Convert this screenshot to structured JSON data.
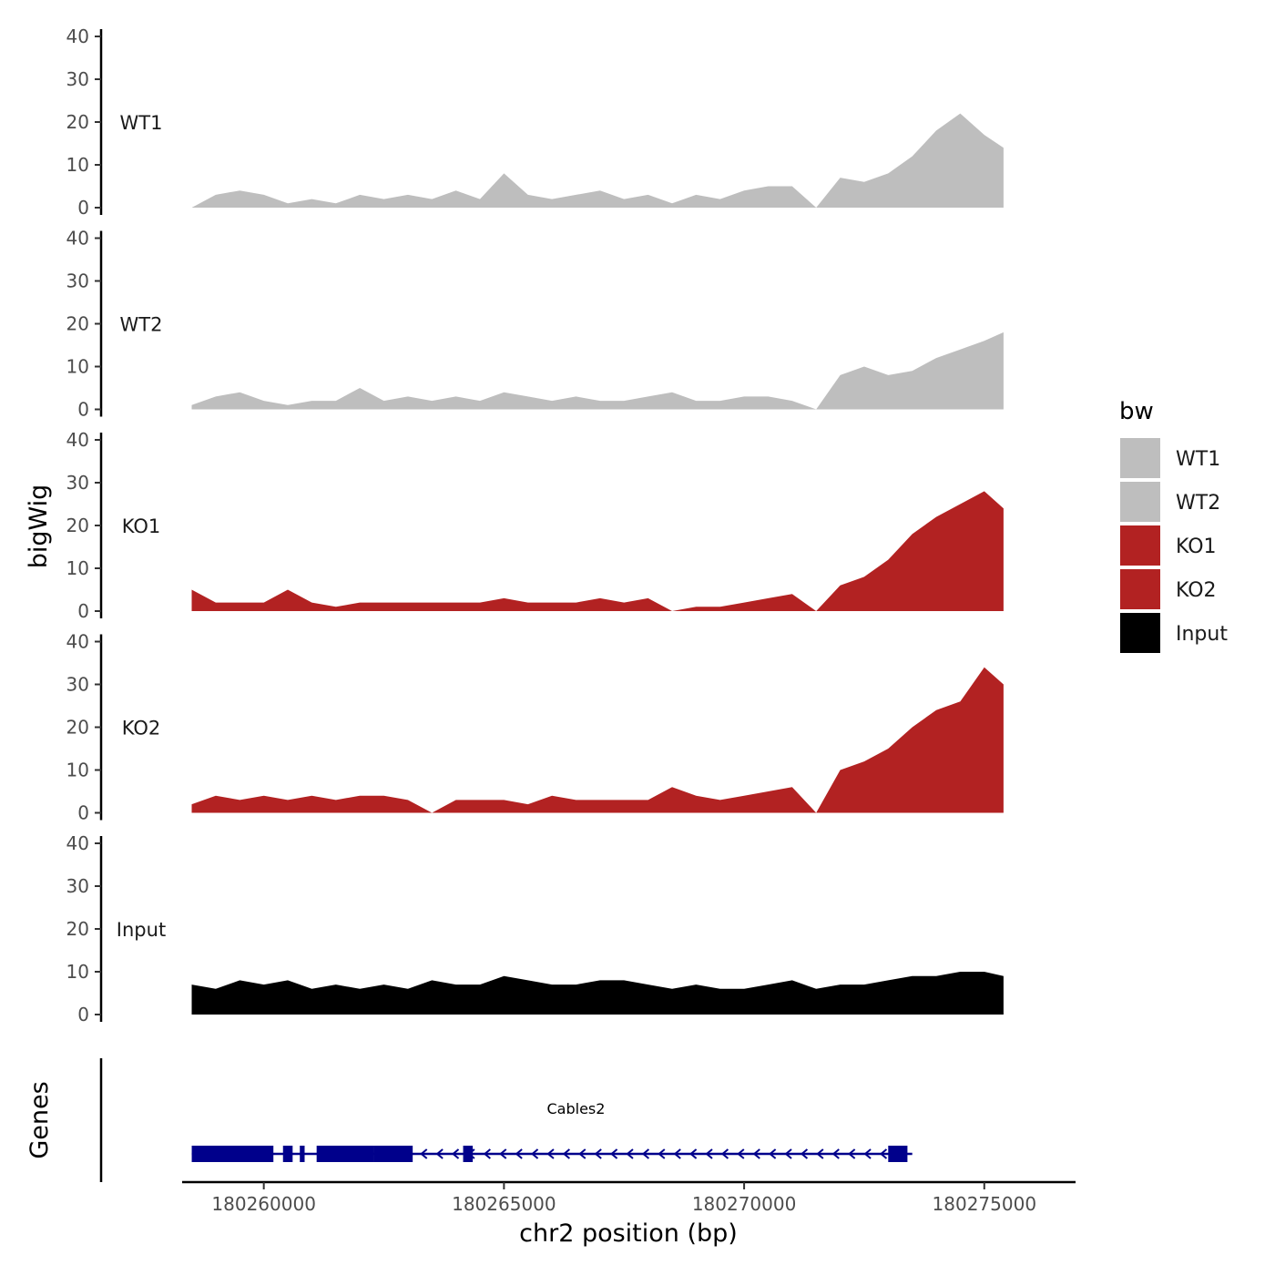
{
  "chart_data": {
    "type": "area",
    "ylabel": "bigWig",
    "xlabel": "chr2 position (bp)",
    "genes_label": "Genes",
    "ylim": [
      0,
      40
    ],
    "y_ticks": [
      "0",
      "10",
      "20",
      "30",
      "40"
    ],
    "xlim": [
      180258300,
      180276900
    ],
    "x_ticks": [
      {
        "value": 180260000,
        "label": "180260000"
      },
      {
        "value": 180265000,
        "label": "180265000"
      },
      {
        "value": 180270000,
        "label": "180270000"
      },
      {
        "value": 180275000,
        "label": "180275000"
      }
    ],
    "legend": {
      "title": "bw",
      "items": [
        {
          "label": "WT1",
          "color": "#bebebe"
        },
        {
          "label": "WT2",
          "color": "#bebebe"
        },
        {
          "label": "KO1",
          "color": "#b22222"
        },
        {
          "label": "KO2",
          "color": "#b22222"
        },
        {
          "label": "Input",
          "color": "#000000"
        }
      ]
    },
    "x": [
      180258500,
      180259000,
      180259500,
      180260000,
      180260500,
      180261000,
      180261500,
      180262000,
      180262500,
      180263000,
      180263500,
      180264000,
      180264500,
      180265000,
      180265500,
      180266000,
      180266500,
      180267000,
      180267500,
      180268000,
      180268500,
      180269000,
      180269500,
      180270000,
      180270500,
      180271000,
      180271500,
      180272000,
      180272500,
      180273000,
      180273500,
      180274000,
      180274500,
      180275000,
      180275400
    ],
    "series": [
      {
        "name": "WT1",
        "color": "#bebebe",
        "values": [
          0,
          3,
          4,
          3,
          1,
          2,
          1,
          3,
          2,
          3,
          2,
          4,
          2,
          8,
          3,
          2,
          3,
          4,
          2,
          3,
          1,
          3,
          2,
          4,
          5,
          5,
          0,
          7,
          6,
          8,
          12,
          18,
          22,
          17,
          14
        ]
      },
      {
        "name": "WT2",
        "color": "#bebebe",
        "values": [
          1,
          3,
          4,
          2,
          1,
          2,
          2,
          5,
          2,
          3,
          2,
          3,
          2,
          4,
          3,
          2,
          3,
          2,
          2,
          3,
          4,
          2,
          2,
          3,
          3,
          2,
          0,
          8,
          10,
          8,
          9,
          12,
          14,
          16,
          18
        ]
      },
      {
        "name": "KO1",
        "color": "#b22222",
        "values": [
          5,
          2,
          2,
          2,
          5,
          2,
          1,
          2,
          2,
          2,
          2,
          2,
          2,
          3,
          2,
          2,
          2,
          3,
          2,
          3,
          0,
          1,
          1,
          2,
          3,
          4,
          0,
          6,
          8,
          12,
          18,
          22,
          25,
          28,
          24
        ]
      },
      {
        "name": "KO2",
        "color": "#b22222",
        "values": [
          2,
          4,
          3,
          4,
          3,
          4,
          3,
          4,
          4,
          3,
          0,
          3,
          3,
          3,
          2,
          4,
          3,
          3,
          3,
          3,
          6,
          4,
          3,
          4,
          5,
          6,
          0,
          10,
          12,
          15,
          20,
          24,
          26,
          34,
          30
        ]
      },
      {
        "name": "Input",
        "color": "#000000",
        "values": [
          7,
          6,
          8,
          7,
          8,
          6,
          7,
          6,
          7,
          6,
          8,
          7,
          7,
          9,
          8,
          7,
          7,
          8,
          8,
          7,
          6,
          7,
          6,
          6,
          7,
          8,
          6,
          7,
          7,
          8,
          9,
          9,
          10,
          10,
          9
        ]
      }
    ],
    "gene_track": {
      "gene": "Cables2",
      "color": "#00008b",
      "start": 180258500,
      "end": 180273500,
      "strand": "-",
      "exons": [
        [
          180258500,
          180260200
        ],
        [
          180260400,
          180260600
        ],
        [
          180260750,
          180260850
        ],
        [
          180261100,
          180262300
        ],
        [
          180262300,
          180263100
        ],
        [
          180264150,
          180264350
        ],
        [
          180273000,
          180273400
        ]
      ]
    }
  }
}
